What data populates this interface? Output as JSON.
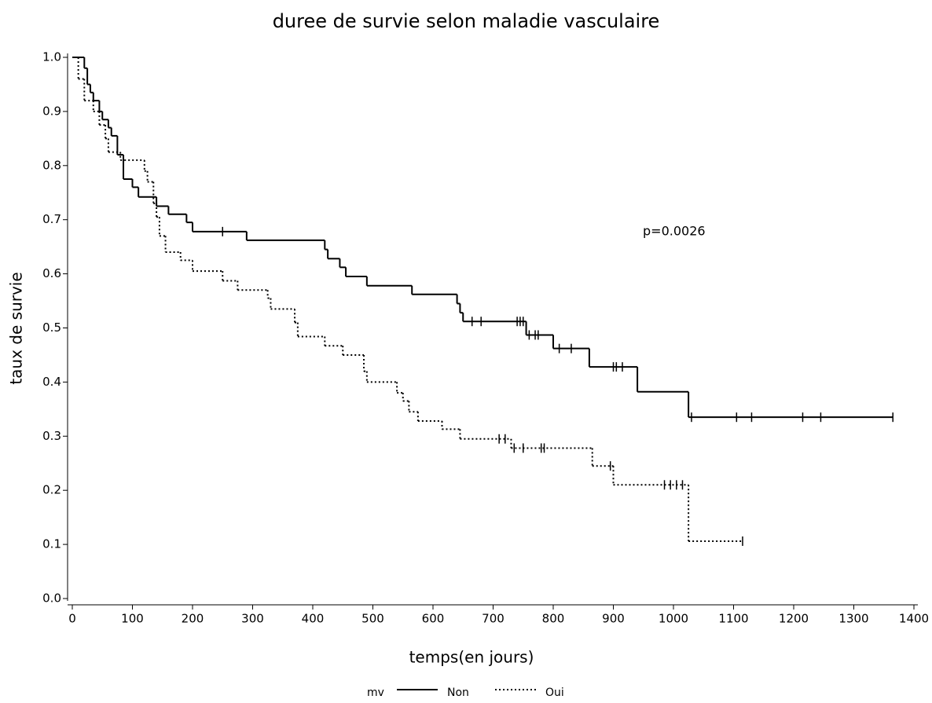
{
  "chart_data": {
    "type": "step",
    "title": "duree de survie selon maladie vasculaire",
    "x_label": "temps(en jours)",
    "y_label": "taux de survie",
    "annotation": "p=0.0026",
    "legend_title": "mv",
    "xlim": [
      0,
      1400
    ],
    "ylim": [
      0,
      1
    ],
    "xticks": [
      0,
      100,
      200,
      300,
      400,
      500,
      600,
      700,
      800,
      900,
      1000,
      1100,
      1200,
      1300,
      1400
    ],
    "yticks": [
      {
        "value": 0,
        "label": "0.0"
      },
      0.1,
      0.2,
      0.3,
      0.4,
      0.5,
      0.6,
      0.7,
      0.8,
      0.9,
      {
        "value": 1,
        "label": "1.0"
      }
    ],
    "series": [
      {
        "name": "Non",
        "color": "#000000",
        "dash": "solid",
        "x": [
          0,
          20,
          25,
          30,
          35,
          45,
          50,
          60,
          65,
          75,
          85,
          100,
          110,
          140,
          160,
          190,
          200,
          290,
          420,
          425,
          445,
          455,
          490,
          565,
          640,
          645,
          650,
          755,
          800,
          860,
          940,
          1025,
          1365
        ],
        "values": [
          1.0,
          0.98,
          0.95,
          0.935,
          0.92,
          0.9,
          0.885,
          0.87,
          0.855,
          0.82,
          0.775,
          0.76,
          0.742,
          0.725,
          0.71,
          0.695,
          0.678,
          0.662,
          0.645,
          0.628,
          0.612,
          0.595,
          0.578,
          0.562,
          0.545,
          0.528,
          0.512,
          0.487,
          0.462,
          0.428,
          0.382,
          0.335,
          0.335
        ],
        "censored": {
          "x": [
            250,
            665,
            680,
            740,
            745,
            750,
            760,
            770,
            775,
            810,
            830,
            900,
            905,
            915,
            1030,
            1105,
            1130,
            1215,
            1245,
            1365
          ],
          "values": [
            0.678,
            0.512,
            0.512,
            0.512,
            0.512,
            0.512,
            0.487,
            0.487,
            0.487,
            0.462,
            0.462,
            0.428,
            0.428,
            0.428,
            0.335,
            0.335,
            0.335,
            0.335,
            0.335,
            0.335
          ]
        }
      },
      {
        "name": "Oui",
        "color": "#000000",
        "dash": "dotted",
        "x": [
          0,
          10,
          20,
          35,
          45,
          55,
          60,
          80,
          120,
          125,
          135,
          140,
          145,
          155,
          180,
          200,
          250,
          275,
          325,
          330,
          370,
          375,
          420,
          450,
          485,
          490,
          540,
          550,
          560,
          575,
          615,
          645,
          730,
          865,
          900,
          1025,
          1115
        ],
        "values": [
          1.0,
          0.96,
          0.92,
          0.9,
          0.875,
          0.85,
          0.825,
          0.81,
          0.79,
          0.77,
          0.73,
          0.705,
          0.67,
          0.64,
          0.625,
          0.605,
          0.587,
          0.57,
          0.555,
          0.535,
          0.51,
          0.484,
          0.467,
          0.45,
          0.42,
          0.4,
          0.38,
          0.365,
          0.345,
          0.328,
          0.313,
          0.295,
          0.278,
          0.245,
          0.21,
          0.106,
          0.106
        ],
        "censored": {
          "x": [
            710,
            720,
            735,
            750,
            780,
            785,
            895,
            985,
            995,
            1005,
            1015,
            1115
          ],
          "values": [
            0.295,
            0.295,
            0.278,
            0.278,
            0.278,
            0.278,
            0.245,
            0.21,
            0.21,
            0.21,
            0.21,
            0.106
          ]
        }
      }
    ]
  }
}
